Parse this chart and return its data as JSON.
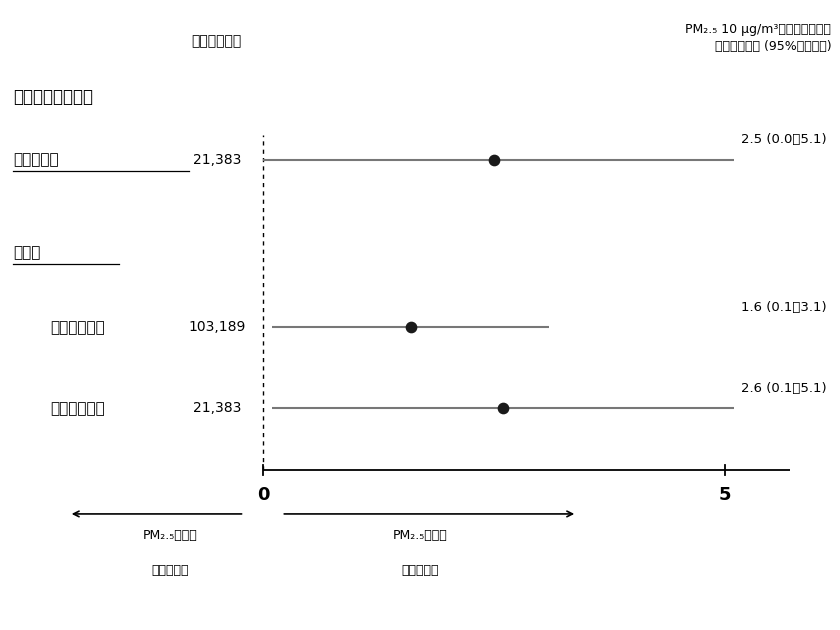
{
  "header_left": "心停止症例数",
  "header_right_line1": "PM₂.₅ 10 μg/m³上昇によるパー",
  "header_right_line2": "セント増加率 (95%信頼区間)",
  "section1_label": "目撃者あり心停止",
  "rows": [
    {
      "label": "呼吸器原性",
      "underline": true,
      "indent": false,
      "n": "21,383",
      "estimate": 2.5,
      "ci_low": 0.0,
      "ci_high": 5.1,
      "result_text": "2.5 (0.0～5.1)"
    },
    {
      "label": "心原性",
      "underline": true,
      "indent": false,
      "n": "",
      "estimate": null,
      "ci_low": null,
      "ci_high": null,
      "result_text": "",
      "section_header": true
    },
    {
      "label": "マッチング前",
      "underline": false,
      "indent": true,
      "n": "103,189",
      "estimate": 1.6,
      "ci_low": 0.1,
      "ci_high": 3.1,
      "result_text": "1.6 (0.1～3.1)"
    },
    {
      "label": "マッチング後",
      "underline": false,
      "indent": true,
      "n": "21,383",
      "estimate": 2.6,
      "ci_low": 0.1,
      "ci_high": 5.1,
      "result_text": "2.6 (0.1～5.1)"
    }
  ],
  "xmin": -2.8,
  "xmax": 6.2,
  "x_axis_left": 0,
  "x_axis_right": 5.7,
  "x_tick_positions": [
    0,
    5
  ],
  "x_tick_labels": [
    "0",
    "5"
  ],
  "xlabel_left_line1": "PM₂.₅による",
  "xlabel_left_line2": "発現率減少",
  "xlabel_right_line1": "PM₂.₅による",
  "xlabel_right_line2": "発現率増加",
  "dot_color": "#1a1a1a",
  "line_color": "#777777",
  "dot_size": 55,
  "background_color": "#ffffff"
}
